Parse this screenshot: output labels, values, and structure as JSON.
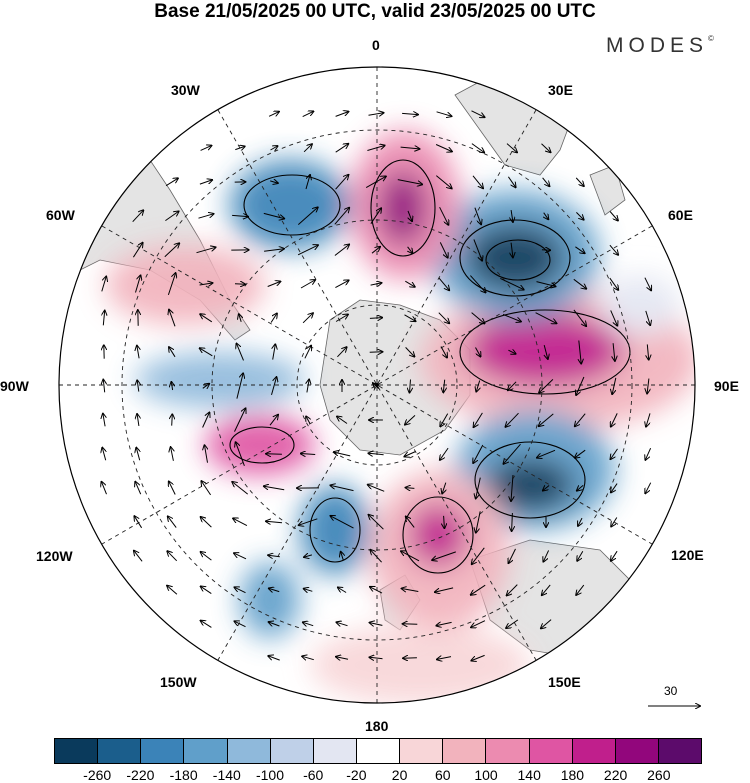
{
  "header": {
    "title": "Base 21/05/2025 00 UTC, valid 23/05/2025 00 UTC",
    "brand": "MODES",
    "brand_mark": "©"
  },
  "map": {
    "projection": "south-polar-stereographic",
    "longitude_labels": {
      "l0": "0",
      "l30e": "30E",
      "l60e": "60E",
      "l90e": "90E",
      "l120e": "120E",
      "l150e": "150E",
      "l180": "180",
      "l150w": "150W",
      "l120w": "120W",
      "l90w": "90W",
      "l60w": "60W",
      "l30w": "30W"
    },
    "vector_reference_label": "30",
    "colors": {
      "land": "#e4e4e4",
      "coast": "#555555"
    }
  },
  "colorbar": {
    "colors": [
      "#0a3a5c",
      "#1b5e8c",
      "#3b83b8",
      "#609fca",
      "#8fb9db",
      "#bfd0e8",
      "#e3e6f2",
      "#ffffff",
      "#f8d6d8",
      "#f2b3bd",
      "#ec8bb0",
      "#df55a3",
      "#c01f8c",
      "#92067c",
      "#5c0b6b"
    ],
    "tick_labels": [
      "-260",
      "-220",
      "-180",
      "-140",
      "-100",
      "-60",
      "-20",
      "20",
      "60",
      "100",
      "140",
      "180",
      "220",
      "260"
    ]
  }
}
